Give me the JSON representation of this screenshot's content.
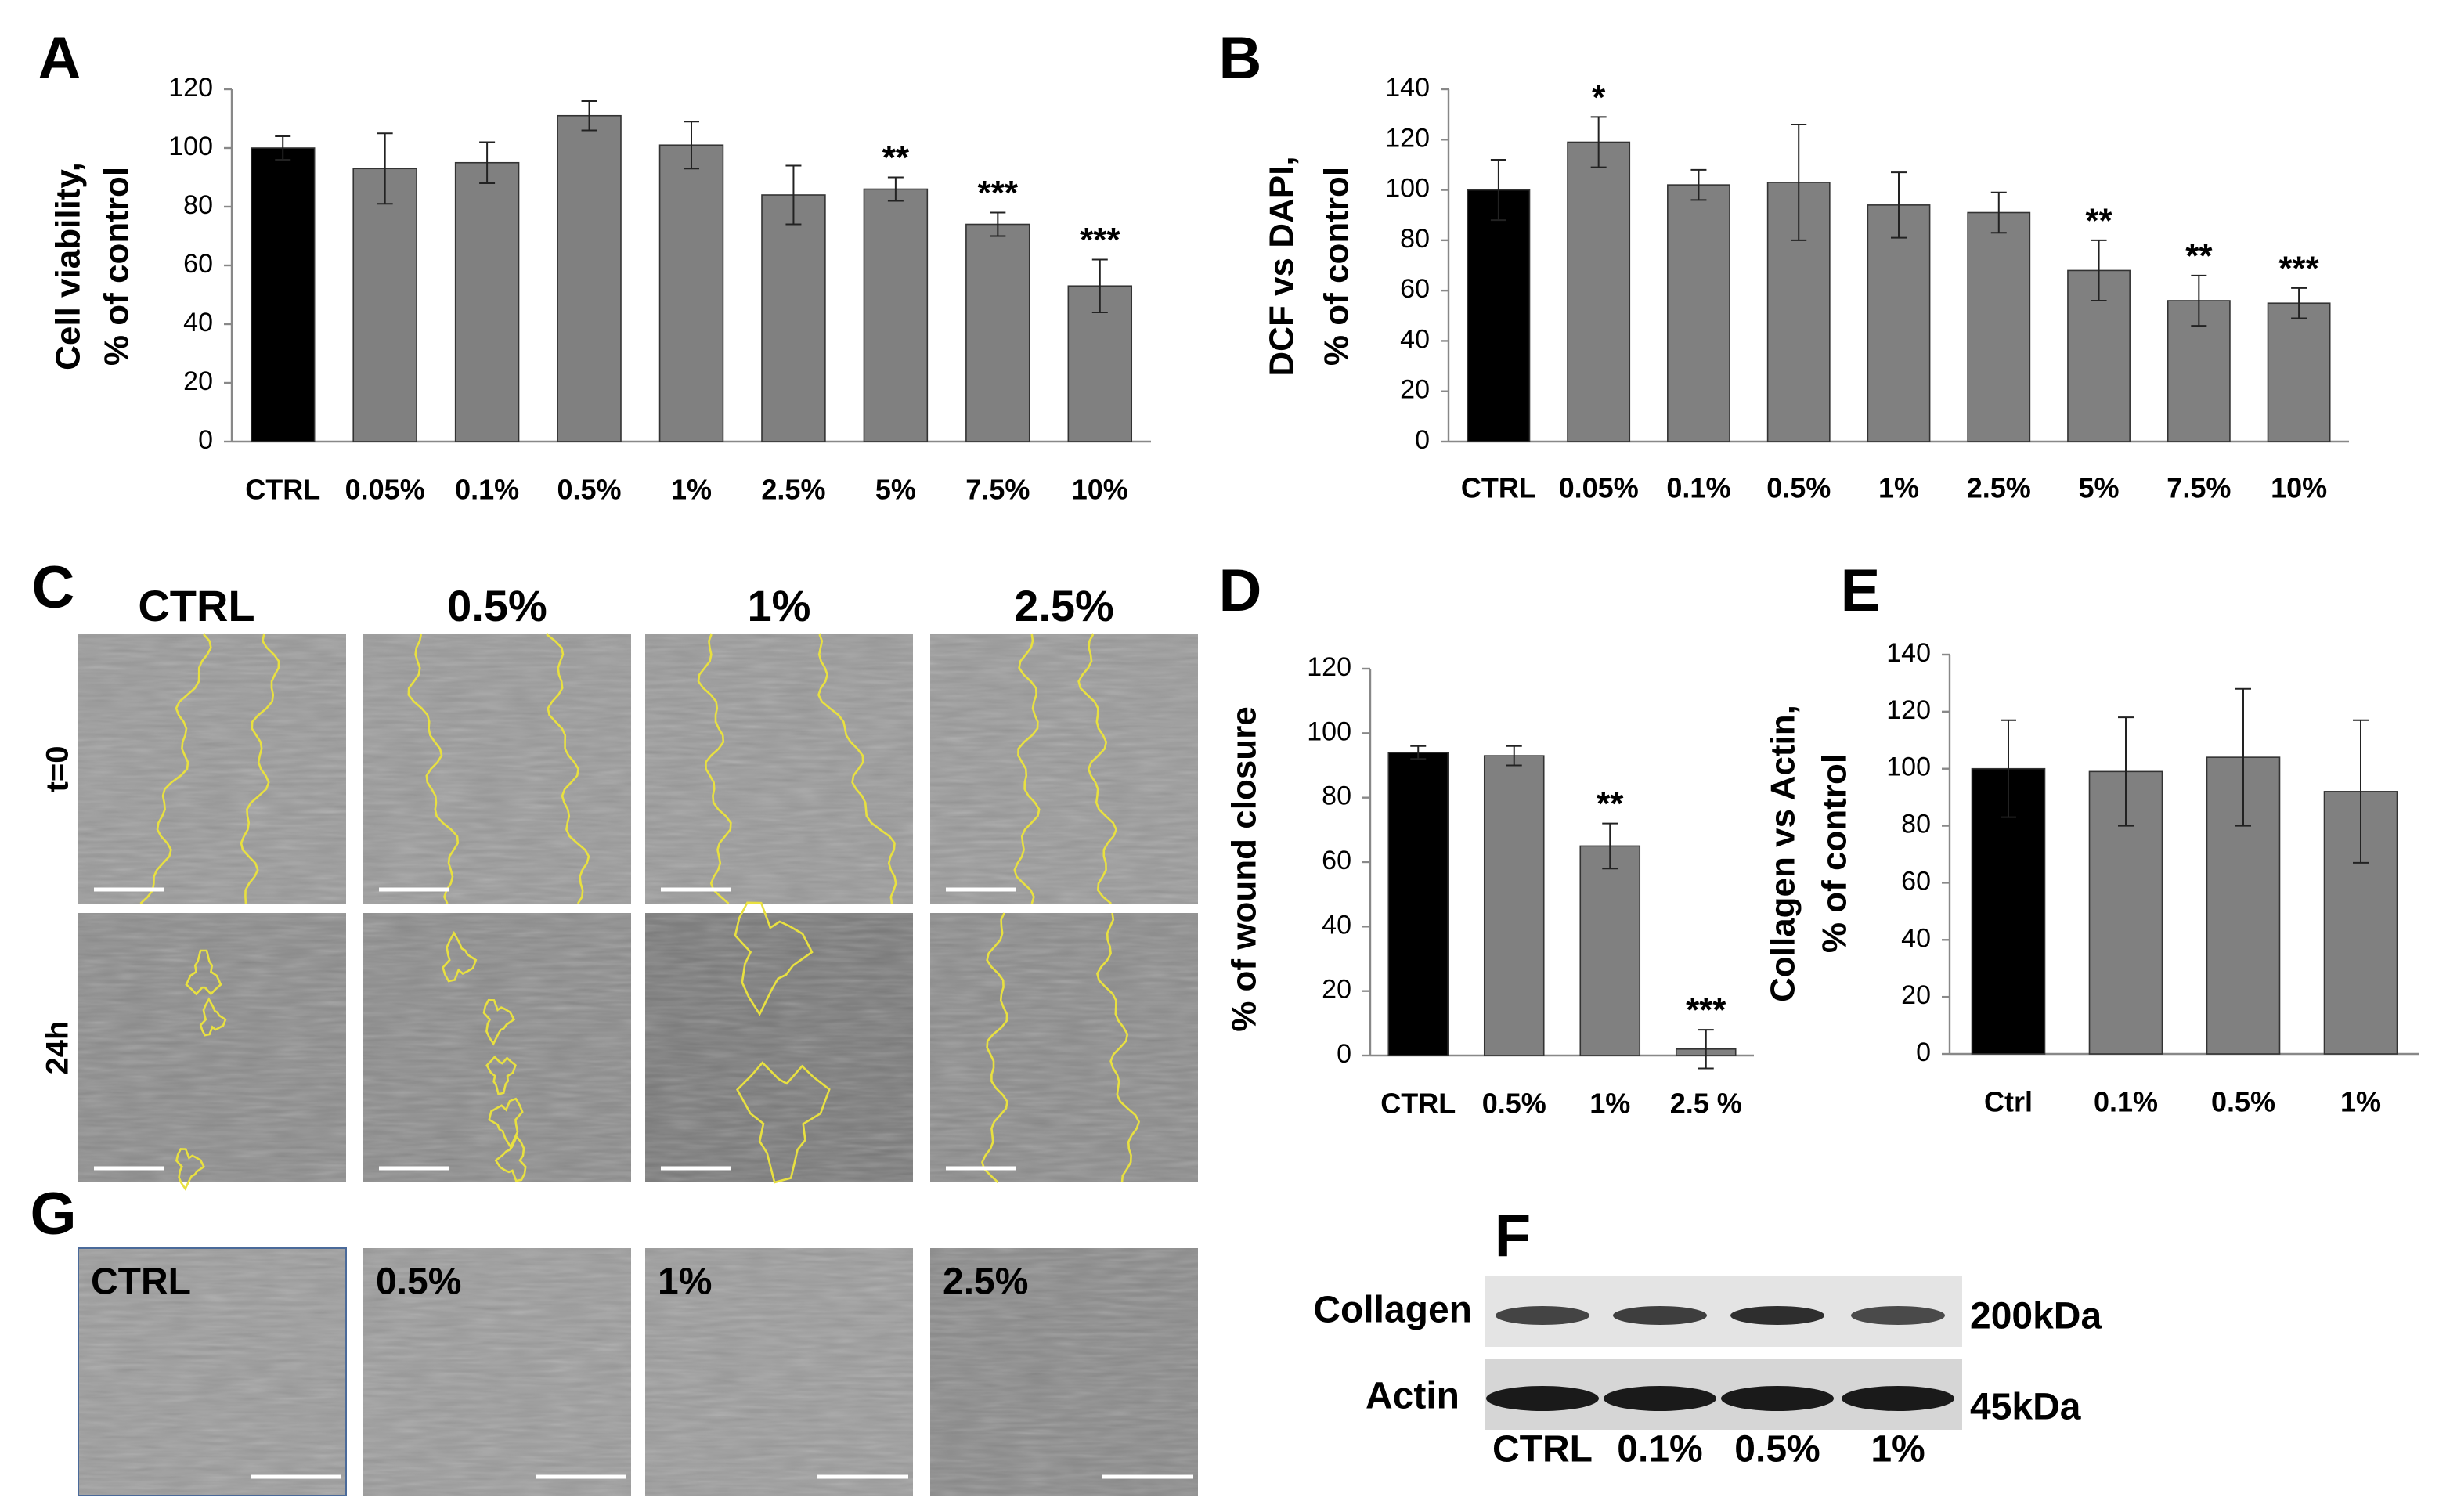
{
  "chart_data": [
    {
      "type": "bar",
      "panel_label": "A",
      "ylabel": [
        "Cell viability,",
        "% of control"
      ],
      "categories": [
        "CTRL",
        "0.05%",
        "0.1%",
        "0.5%",
        "1%",
        "2.5%",
        "5%",
        "7.5%",
        "10%"
      ],
      "values": [
        100,
        93,
        95,
        111,
        101,
        84,
        86,
        74,
        53
      ],
      "errors": [
        4,
        12,
        7,
        5,
        8,
        10,
        4,
        4,
        9
      ],
      "significance": [
        null,
        null,
        null,
        null,
        null,
        null,
        "**",
        "***",
        "***"
      ],
      "colors": [
        "#000000",
        "#808080",
        "#808080",
        "#808080",
        "#808080",
        "#808080",
        "#808080",
        "#808080",
        "#808080"
      ],
      "ylim": [
        0,
        120
      ],
      "yticks": [
        0,
        20,
        40,
        60,
        80,
        100,
        120
      ]
    },
    {
      "type": "bar",
      "panel_label": "B",
      "ylabel": [
        "DCF vs DAPI,",
        "% of control"
      ],
      "categories": [
        "CTRL",
        "0.05%",
        "0.1%",
        "0.5%",
        "1%",
        "2.5%",
        "5%",
        "7.5%",
        "10%"
      ],
      "values": [
        100,
        119,
        102,
        103,
        94,
        91,
        68,
        56,
        55
      ],
      "errors": [
        12,
        10,
        6,
        23,
        13,
        8,
        12,
        10,
        6
      ],
      "significance": [
        null,
        "*",
        null,
        null,
        null,
        null,
        "**",
        "**",
        "***"
      ],
      "colors": [
        "#000000",
        "#808080",
        "#808080",
        "#808080",
        "#808080",
        "#808080",
        "#808080",
        "#808080",
        "#808080"
      ],
      "ylim": [
        0,
        140
      ],
      "yticks": [
        0,
        20,
        40,
        60,
        80,
        100,
        120,
        140
      ]
    },
    {
      "type": "bar",
      "panel_label": "D",
      "ylabel": [
        "% of wound closure"
      ],
      "categories": [
        "CTRL",
        "0.5%",
        "1%",
        "2.5 %"
      ],
      "values": [
        94,
        93,
        65,
        2
      ],
      "errors": [
        2,
        3,
        7,
        6
      ],
      "significance": [
        null,
        null,
        "**",
        "***"
      ],
      "colors": [
        "#000000",
        "#808080",
        "#808080",
        "#808080"
      ],
      "ylim": [
        0,
        120
      ],
      "yticks": [
        0,
        20,
        40,
        60,
        80,
        100,
        120
      ]
    },
    {
      "type": "bar",
      "panel_label": "E",
      "ylabel": [
        "Collagen vs Actin,",
        "% of control"
      ],
      "categories": [
        "Ctrl",
        "0.1%",
        "0.5%",
        "1%"
      ],
      "values": [
        100,
        99,
        104,
        92
      ],
      "errors": [
        17,
        19,
        24,
        25
      ],
      "significance": [
        null,
        null,
        null,
        null
      ],
      "colors": [
        "#000000",
        "#808080",
        "#808080",
        "#808080"
      ],
      "ylim": [
        0,
        140
      ],
      "yticks": [
        0,
        20,
        40,
        60,
        80,
        100,
        120,
        140
      ]
    }
  ],
  "scratch_assay": {
    "panel_label": "C",
    "columns": [
      "CTRL",
      "0.5%",
      "1%",
      "2.5%"
    ],
    "rows": [
      "t=0",
      "24h"
    ]
  },
  "morphology": {
    "panel_label": "G",
    "labels": [
      "CTRL",
      "0.5%",
      "1%",
      "2.5%"
    ]
  },
  "western_blot": {
    "panel_label": "F",
    "bands": [
      "Collagen",
      "Actin"
    ],
    "sizes": [
      "200kDa",
      "45kDa"
    ],
    "lanes": [
      "CTRL",
      "0.1%",
      "0.5%",
      "1%"
    ]
  }
}
